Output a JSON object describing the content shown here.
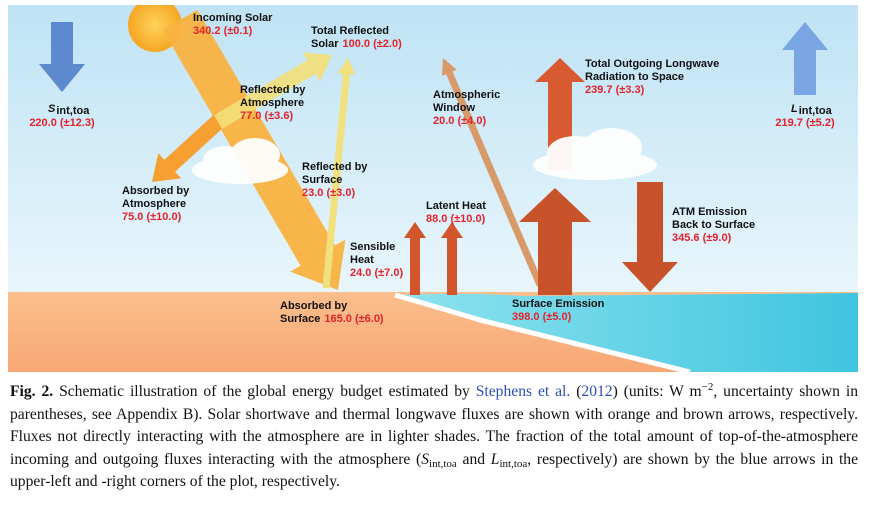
{
  "diagram": {
    "nodes": [
      {
        "lines": [
          "Incoming Solar"
        ],
        "value": "340.2 (±0.1)"
      },
      {
        "lines": [
          "Total Reflected",
          "Solar"
        ],
        "value": "100.0 (±2.0)"
      },
      {
        "lines": [
          "Reflected by",
          "Atmosphere"
        ],
        "value": "77.0 (±3.6)"
      },
      {
        "lines": [
          "Reflected by",
          "Surface"
        ],
        "value": "23.0 (±3.0)"
      },
      {
        "lines": [
          "Absorbed by",
          "Atmosphere"
        ],
        "value": "75.0 (±10.0)"
      },
      {
        "lines": [
          "Absorbed by",
          "Surface"
        ],
        "value": "165.0 (±6.0)"
      },
      {
        "lines": [
          "Sensible",
          "Heat"
        ],
        "value": "24.0 (±7.0)"
      },
      {
        "lines": [
          "Latent Heat"
        ],
        "value": "88.0 (±10.0)"
      },
      {
        "lines": [
          "Atmospheric",
          "Window"
        ],
        "value": "20.0 (±4.0)"
      },
      {
        "lines": [
          "Total Outgoing Longwave",
          "Radiation to Space"
        ],
        "value": "239.7 (±3.3)"
      },
      {
        "lines": [
          "ATM Emission",
          "Back to Surface"
        ],
        "value": "345.6 (±9.0)"
      },
      {
        "lines": [
          "Surface Emission"
        ],
        "value": "398.0 (±5.0)"
      }
    ],
    "corners": [
      {
        "symbol": "S",
        "subscript": "int,toa",
        "value": "220.0 (±12.3)"
      },
      {
        "symbol": "L",
        "subscript": "int,toa",
        "value": "219.7 (±5.2)"
      }
    ]
  },
  "caption": {
    "label": "Fig. 2.",
    "parts": [
      " Schematic illustration of the global energy budget estimated by ",
      "Stephens et al.",
      " (",
      "2012",
      ") (units: W m",
      "−2",
      ", uncertainty shown in parentheses, see Appendix B). Solar shortwave and thermal longwave fluxes are shown with orange and brown arrows, respectively. Fluxes not directly interacting with the atmosphere are in lighter shades. The fraction of the total amount of top-of-the-atmosphere incoming and outgoing fluxes interacting with the atmosphere (",
      "S",
      "int,toa",
      " and ",
      "L",
      "int,toa",
      ", respectively) are shown by the blue arrows in the upper-left and -right corners of the plot, respectively."
    ]
  }
}
